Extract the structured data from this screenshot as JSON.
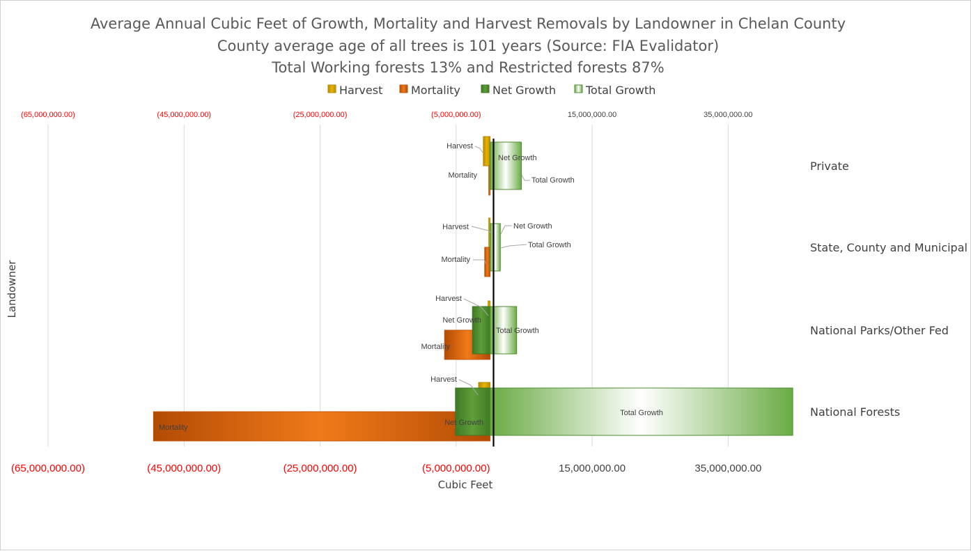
{
  "chart_data": {
    "type": "bar",
    "orientation": "horizontal",
    "title": [
      "Average Annual Cubic Feet of Growth, Mortality and Harvest Removals by Landowner in Chelan County",
      "County average age of all trees is 101 years (Source: FIA Evalidator)",
      "Total Working forests 13% and Restricted forests 87%"
    ],
    "xlabel": "Cubic  Feet",
    "ylabel": "Landowner",
    "xlim": [
      -65000000,
      45000000
    ],
    "x_ticks": [
      -65000000,
      -45000000,
      -25000000,
      -5000000,
      15000000,
      35000000
    ],
    "x_tick_labels": [
      "(65,000,000.00)",
      "(45,000,000.00)",
      "(25,000,000.00)",
      "(5,000,000.00)",
      "15,000,000.00",
      "35,000,000.00"
    ],
    "negative_tick_color": "#ff0000",
    "positive_tick_color": "#404040",
    "grid": "vertical",
    "legend_position": "top",
    "categories": [
      "Private",
      "State, County and Municipal",
      "National Parks/Other Fed",
      "National Forests"
    ],
    "series": [
      {
        "name": "Harvest",
        "color": "#d4a000",
        "values": [
          -1000000,
          -200000,
          -300000,
          -1700000
        ]
      },
      {
        "name": "Mortality",
        "color": "#e46c0a",
        "values": [
          -200000,
          -800000,
          -6700000,
          -49500000
        ]
      },
      {
        "name": "Net Growth",
        "color": "#4e8c2f",
        "values": [
          4400000,
          900000,
          -2600000,
          -5100000
        ]
      },
      {
        "name": "Total Growth",
        "color": "#8cc26a",
        "values": [
          4600000,
          1500000,
          3900000,
          44500000
        ]
      }
    ],
    "annotations": [
      "reference line at 500,000 cubic feet"
    ]
  }
}
